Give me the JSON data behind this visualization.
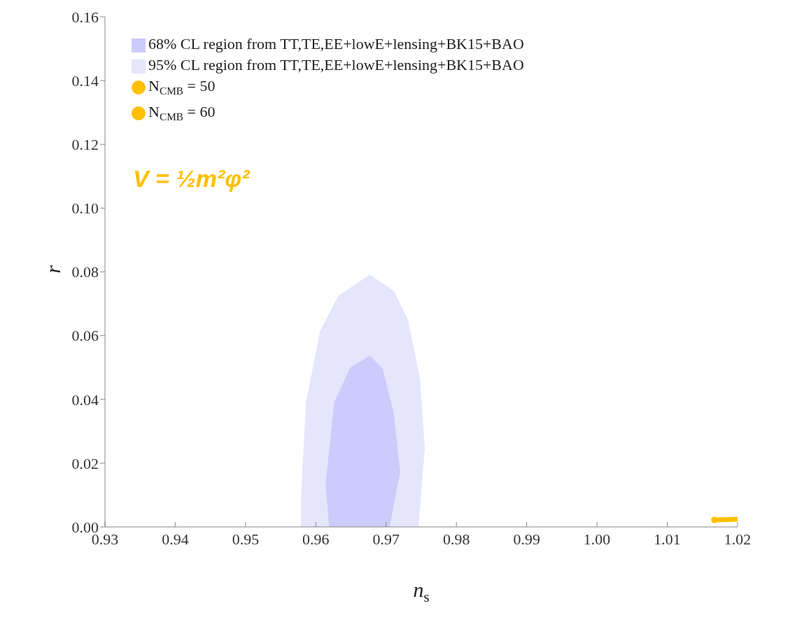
{
  "chart_data": {
    "type": "area",
    "xlabel": "n$_{s}$",
    "ylabel": "r",
    "xlim": [
      0.93,
      1.02
    ],
    "ylim": [
      0,
      0.16
    ],
    "xticks": [
      0.93,
      0.94,
      0.95,
      0.96,
      0.97,
      0.98,
      0.99,
      {
        "value": 1.0,
        "label": "1.00"
      },
      1.01,
      1.02
    ],
    "yticks": [
      {
        "value": 0,
        "label": "0.00"
      },
      0.02,
      0.04,
      0.06,
      0.08,
      {
        "value": 0.1,
        "label": "0.10"
      },
      0.12,
      0.14,
      0.16
    ],
    "grid": false,
    "legend": "top left",
    "annotations": [
      "V = ½m²φ²"
    ],
    "series": [
      {
        "name": "68% CL region from TT,TE,EE+lowE+lensing+BK15+BAO",
        "color": "#ccccfc",
        "x": [
          0.9619,
          0.9614,
          0.9626,
          0.9649,
          0.9677,
          0.9695,
          0.9711,
          0.972,
          0.9705
        ],
        "values": [
          0,
          0.0135,
          0.039,
          0.05,
          0.0537,
          0.0497,
          0.0356,
          0.0172,
          0
        ]
      },
      {
        "name": "95% CL region from TT,TE,EE+lowE+lensing+BK15+BAO",
        "color": "#e5e5fc",
        "x": [
          0.9579,
          0.9579,
          0.9586,
          0.9606,
          0.9632,
          0.9677,
          0.9711,
          0.9731,
          0.9748,
          0.9755,
          0.9746
        ],
        "values": [
          0,
          0.0099,
          0.039,
          0.0614,
          0.0725,
          0.0791,
          0.074,
          0.065,
          0.0466,
          0.0245,
          0
        ]
      },
      {
        "type": "line",
        "color": "#ffc000",
        "marker": "none",
        "x": [
          1.0167,
          1.02
        ],
        "values": [
          0.0022,
          0.0024
        ]
      },
      {
        "name": "N$_{CMB}$ = 50",
        "type": "scatter",
        "color": "#ffc000",
        "marker": "circle",
        "x": [
          1.0167
        ],
        "values": [
          0.0022
        ]
      },
      {
        "name": "N$_{CMB}$ = 60",
        "type": "scatter",
        "color": "#ffc000",
        "marker": "circle"
      }
    ]
  }
}
